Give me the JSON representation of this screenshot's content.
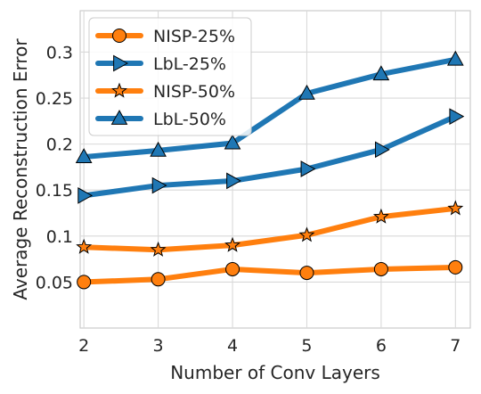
{
  "chart_data": {
    "type": "line",
    "xlabel": "Number of Conv Layers",
    "ylabel": "Average Reconstruction Error",
    "categories": [
      "2",
      "3",
      "4",
      "5",
      "6",
      "7"
    ],
    "x": [
      2,
      3,
      4,
      5,
      6,
      7
    ],
    "xlim": [
      1.95,
      7.2
    ],
    "ylim": [
      0.0,
      0.345
    ],
    "yticks": [
      0.05,
      0.1,
      0.15,
      0.2,
      0.25,
      0.3
    ],
    "ytick_labels": [
      "0.05",
      "0.1",
      "0.15",
      "0.2",
      "0.25",
      "0.3"
    ],
    "grid": true,
    "legend_position": "top-left",
    "series": [
      {
        "name": "NISP-25%",
        "color": "#ff7f0e",
        "marker": "circle",
        "values": [
          0.05,
          0.053,
          0.064,
          0.06,
          0.064,
          0.066
        ]
      },
      {
        "name": "LbL-25%",
        "color": "#1f77b4",
        "marker": "triangle-right",
        "values": [
          0.144,
          0.155,
          0.16,
          0.173,
          0.194,
          0.23
        ]
      },
      {
        "name": "NISP-50%",
        "color": "#ff7f0e",
        "marker": "star",
        "values": [
          0.088,
          0.085,
          0.09,
          0.101,
          0.121,
          0.13
        ]
      },
      {
        "name": "LbL-50%",
        "color": "#1f77b4",
        "marker": "triangle-up",
        "values": [
          0.186,
          0.193,
          0.201,
          0.255,
          0.276,
          0.292
        ]
      }
    ]
  }
}
